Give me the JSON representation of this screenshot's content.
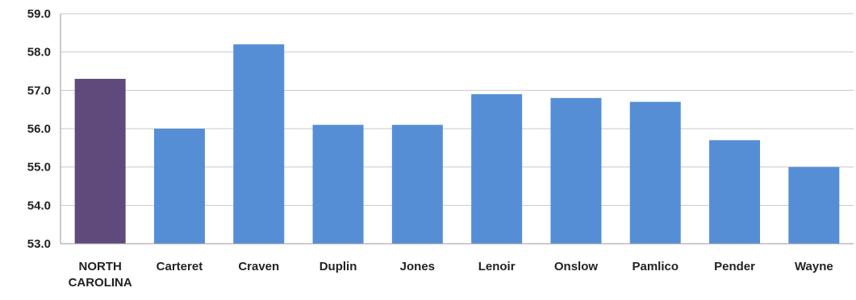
{
  "chart_data": {
    "type": "bar",
    "title": "",
    "xlabel": "",
    "ylabel": "",
    "ylim": [
      53.0,
      59.0
    ],
    "yticks": [
      "53.0",
      "54.0",
      "55.0",
      "56.0",
      "57.0",
      "58.0",
      "59.0"
    ],
    "grid": true,
    "legend": "none",
    "categories": [
      [
        "NORTH",
        "CAROLINA"
      ],
      [
        "Carteret"
      ],
      [
        "Craven"
      ],
      [
        "Duplin"
      ],
      [
        "Jones"
      ],
      [
        "Lenoir"
      ],
      [
        "Onslow"
      ],
      [
        "Pamlico"
      ],
      [
        "Pender"
      ],
      [
        "Wayne"
      ]
    ],
    "values": [
      57.3,
      56.0,
      58.2,
      56.1,
      56.1,
      56.9,
      56.8,
      56.7,
      55.7,
      55.0
    ],
    "colors": [
      "#604a7b",
      "#558ed5",
      "#558ed5",
      "#558ed5",
      "#558ed5",
      "#558ed5",
      "#558ed5",
      "#558ed5",
      "#558ed5",
      "#558ed5"
    ]
  }
}
